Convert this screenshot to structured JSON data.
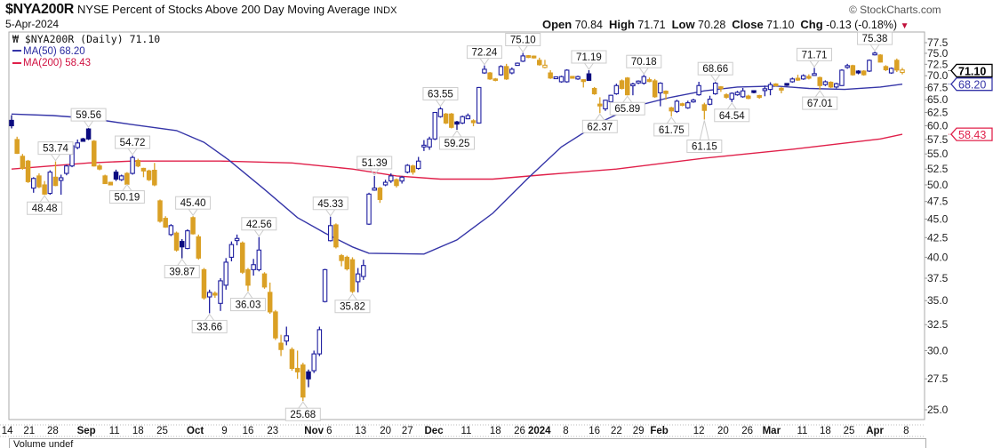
{
  "header": {
    "symbol": "$NYA200R",
    "description": "NYSE Percent of Stocks Above 200 Day Moving Average",
    "exchange": "INDX",
    "date": "5-Apr-2024",
    "logo": "© StockCharts.com",
    "open_label": "Open",
    "open": "70.84",
    "high_label": "High",
    "high": "71.71",
    "low_label": "Low",
    "low": "70.28",
    "close_label": "Close",
    "close": "71.10",
    "chg_label": "Chg",
    "chg": "-0.13 (-0.18%)",
    "chg_icon": "triangle-down-icon"
  },
  "legend": {
    "main": "$NYA200R (Daily) 71.10",
    "ma50": "MA(50) 68.20",
    "ma200": "MA(200) 58.43"
  },
  "volume_panel": {
    "label": "Volume undef"
  },
  "colors": {
    "up": "#1f1fa0",
    "down": "#daa025",
    "ma50": "#3535a8",
    "ma200": "#e0204a",
    "last": "#000000"
  },
  "chart_data": {
    "type": "candlestick",
    "title": "$NYA200R NYSE Percent of Stocks Above 200 Day Moving Average",
    "yscale": "log",
    "ylim": [
      25.0,
      77.5
    ],
    "y_ticks": [
      "25.0",
      "27.5",
      "30.0",
      "32.5",
      "35.0",
      "37.5",
      "40.0",
      "42.5",
      "45.0",
      "47.5",
      "50.0",
      "52.5",
      "55.0",
      "57.5",
      "60.0",
      "62.5",
      "65.0",
      "67.5",
      "70.0",
      "72.5",
      "75.0",
      "77.5"
    ],
    "x_ticks": [
      {
        "i": -0.8,
        "label": "14"
      },
      {
        "i": 3.2,
        "label": "21"
      },
      {
        "i": 7.5,
        "label": "28"
      },
      {
        "i": 13.6,
        "label": "Sep",
        "bold": true
      },
      {
        "i": 18.7,
        "label": "11"
      },
      {
        "i": 23,
        "label": "18"
      },
      {
        "i": 27.4,
        "label": "25"
      },
      {
        "i": 33.4,
        "label": "Oct",
        "bold": true
      },
      {
        "i": 38.7,
        "label": "9"
      },
      {
        "i": 43,
        "label": "16"
      },
      {
        "i": 47.5,
        "label": "23"
      },
      {
        "i": 55,
        "label": "Nov",
        "bold": true
      },
      {
        "i": 57.6,
        "label": "6"
      },
      {
        "i": 63.5,
        "label": "13"
      },
      {
        "i": 68,
        "label": "20"
      },
      {
        "i": 72,
        "label": "27"
      },
      {
        "i": 76.8,
        "label": "Dec",
        "bold": true
      },
      {
        "i": 82.7,
        "label": "11"
      },
      {
        "i": 88,
        "label": "18"
      },
      {
        "i": 92.4,
        "label": "26"
      },
      {
        "i": 96,
        "label": "2024",
        "bold": true
      },
      {
        "i": 100.8,
        "label": "8"
      },
      {
        "i": 106,
        "label": "16"
      },
      {
        "i": 110,
        "label": "22"
      },
      {
        "i": 114,
        "label": "29"
      },
      {
        "i": 117.8,
        "label": "Feb",
        "bold": true
      },
      {
        "i": 125,
        "label": "12"
      },
      {
        "i": 129.4,
        "label": "20"
      },
      {
        "i": 133.8,
        "label": "26"
      },
      {
        "i": 138.2,
        "label": "Mar",
        "bold": true
      },
      {
        "i": 143.8,
        "label": "11"
      },
      {
        "i": 148,
        "label": "18"
      },
      {
        "i": 152.3,
        "label": "25"
      },
      {
        "i": 157,
        "label": "Apr",
        "bold": true
      },
      {
        "i": 162.7,
        "label": "8"
      }
    ],
    "ohlc": [
      [
        61,
        62,
        59.5,
        60
      ],
      [
        57.5,
        58,
        55,
        55.1
      ],
      [
        54.6,
        55,
        52.4,
        52.6
      ],
      [
        53.8,
        54,
        50.3,
        50.5
      ],
      [
        49.5,
        51.2,
        48.8,
        51
      ],
      [
        51.4,
        51.8,
        49.5,
        49.7
      ],
      [
        50,
        50.6,
        48.48,
        48.6
      ],
      [
        48.7,
        52.3,
        48.5,
        52
      ],
      [
        51.2,
        53.74,
        49.8,
        49.9
      ],
      [
        50.8,
        51.6,
        48.5,
        51
      ],
      [
        51.8,
        53.2,
        51.5,
        53
      ],
      [
        53,
        56.6,
        52.8,
        56.4
      ],
      [
        56.1,
        57.5,
        55.8,
        56.9
      ],
      [
        57.5,
        57.8,
        57.1,
        57.3
      ],
      [
        59.4,
        59.56,
        57.4,
        57.6
      ],
      [
        57.2,
        57.4,
        52.9,
        53
      ],
      [
        53,
        53.3,
        52.3,
        52.5
      ],
      [
        51.4,
        51.6,
        50.3,
        50.2
      ],
      [
        50.3,
        50.4,
        50.3,
        50.1
      ],
      [
        52,
        52.4,
        50.6,
        50.9
      ],
      [
        50.8,
        51.6,
        50.6,
        51.4
      ],
      [
        51.8,
        52,
        50.19,
        50.1
      ],
      [
        51.8,
        54.72,
        51.6,
        54.4
      ],
      [
        53.9,
        54.2,
        52.8,
        53
      ],
      [
        52.5,
        52.7,
        51.2,
        52.3
      ],
      [
        52.2,
        52.4,
        50.6,
        50.8
      ],
      [
        52.3,
        53.5,
        49.8,
        50
      ],
      [
        47.6,
        47.8,
        44.5,
        44.7
      ],
      [
        45.1,
        45.4,
        43.8,
        43.9
      ],
      [
        42.9,
        44.3,
        42.7,
        44.1
      ],
      [
        43.1,
        43.3,
        40.7,
        40.9
      ],
      [
        42,
        42.3,
        39.87,
        41.3
      ],
      [
        41.1,
        43.6,
        41,
        43.4
      ],
      [
        45.2,
        45.4,
        42.9,
        43
      ],
      [
        42.6,
        42.9,
        39.7,
        39.9
      ],
      [
        38.5,
        38.7,
        35.1,
        35.3
      ],
      [
        35.4,
        36.2,
        33.66,
        35.9
      ],
      [
        35.8,
        36,
        35.3,
        35.6
      ],
      [
        34.7,
        37.5,
        33.9,
        37.2
      ],
      [
        36.7,
        39.9,
        36.2,
        39.4
      ],
      [
        40,
        42,
        39.5,
        41.6
      ],
      [
        42.2,
        42.9,
        41.5,
        42.3
      ],
      [
        41.8,
        42,
        38,
        38.2
      ],
      [
        38.5,
        38.7,
        36.03,
        36.7
      ],
      [
        38.5,
        39.8,
        37.8,
        39.1
      ],
      [
        38.5,
        42.56,
        38.3,
        40.9
      ],
      [
        38,
        38.2,
        36.3,
        36.5
      ],
      [
        35.9,
        37,
        33.6,
        33.8
      ],
      [
        33.8,
        34,
        31,
        31.2
      ],
      [
        30.7,
        31.5,
        29.5,
        30.1
      ],
      [
        30.9,
        32.3,
        30.5,
        31.4
      ],
      [
        30.1,
        30.3,
        28.2,
        28.4
      ],
      [
        28.4,
        30,
        27.5,
        28.1
      ],
      [
        28.7,
        28.9,
        25.68,
        26
      ],
      [
        28.1,
        28.3,
        26.8,
        27.5
      ],
      [
        28.2,
        30,
        28,
        29.7
      ],
      [
        29.7,
        32.3,
        29.5,
        32
      ],
      [
        34.9,
        38.6,
        34.8,
        38.5
      ],
      [
        42.1,
        45.33,
        42,
        44.1
      ],
      [
        44.2,
        44.4,
        41.1,
        41.3
      ],
      [
        40.2,
        40.4,
        38.9,
        39.6
      ],
      [
        40,
        40.2,
        38.4,
        38.6
      ],
      [
        39.7,
        40,
        35.82,
        36
      ],
      [
        37.1,
        38.7,
        35.9,
        38
      ],
      [
        37.7,
        39.7,
        37.3,
        39
      ],
      [
        44.3,
        48.8,
        44.2,
        48.6
      ],
      [
        49.3,
        51.39,
        49.1,
        49.4
      ],
      [
        49.5,
        49.7,
        47.3,
        47.8
      ],
      [
        50,
        50.8,
        49.8,
        50.4
      ],
      [
        50.6,
        51.8,
        50.3,
        51.4
      ],
      [
        50.8,
        51,
        49.6,
        49.9
      ],
      [
        50.6,
        51.4,
        50.2,
        51.2
      ],
      [
        52,
        53.3,
        51.8,
        53.1
      ],
      [
        53,
        53.2,
        51.6,
        52
      ],
      [
        52.6,
        54.5,
        52.4,
        53.8
      ],
      [
        56.2,
        57.4,
        55.5,
        56.5
      ],
      [
        56.2,
        58,
        55.7,
        57.6
      ],
      [
        57.6,
        62.6,
        57.4,
        62.5
      ],
      [
        61.7,
        63.55,
        61.5,
        63.2
      ],
      [
        62.2,
        62.4,
        60.3,
        60.5
      ],
      [
        62.2,
        62.4,
        59.5,
        59.7
      ],
      [
        60.7,
        60.9,
        59.25,
        60.3
      ],
      [
        60.5,
        61.9,
        60.3,
        61.7
      ],
      [
        61.3,
        62.3,
        61.2,
        61.9
      ],
      [
        60.8,
        61.2,
        59.9,
        60.7
      ],
      [
        60.5,
        67.6,
        60.4,
        67.5
      ],
      [
        70.6,
        72.24,
        70.4,
        71.4
      ],
      [
        70.6,
        70.8,
        69.1,
        69.3
      ],
      [
        69.3,
        69.5,
        68.8,
        69
      ],
      [
        70.2,
        72.3,
        70,
        72
      ],
      [
        72,
        72.6,
        69.1,
        69.3
      ],
      [
        70.6,
        71.8,
        70.3,
        71.4
      ],
      [
        72.4,
        72.9,
        72.2,
        72.6
      ],
      [
        73.2,
        75.1,
        73,
        74.4
      ],
      [
        74.3,
        74.6,
        73.9,
        74.2
      ],
      [
        74.2,
        74.5,
        73.8,
        74.1
      ],
      [
        73.4,
        74,
        72.2,
        72.4
      ],
      [
        71.8,
        73.5,
        71.6,
        72.3
      ],
      [
        70.6,
        71.2,
        69.3,
        69.5
      ],
      [
        69.5,
        69.8,
        69.3,
        69.6
      ],
      [
        68.7,
        70,
        68.5,
        69.8
      ],
      [
        68.7,
        71.4,
        68.5,
        71.2
      ],
      [
        69.7,
        69.9,
        69.4,
        69.6
      ],
      [
        69.3,
        70,
        69.1,
        69.8
      ],
      [
        69,
        69.2,
        67.5,
        68.9
      ],
      [
        70.4,
        71.19,
        68.9,
        69
      ],
      [
        67.3,
        67.6,
        66,
        66.2
      ],
      [
        64,
        65.5,
        62.37,
        63.9
      ],
      [
        63.2,
        65,
        62.8,
        64.9
      ],
      [
        64.6,
        66,
        64.3,
        65.9
      ],
      [
        66.2,
        68.3,
        66,
        67.9
      ],
      [
        68.9,
        69.2,
        67.1,
        67.3
      ],
      [
        69.5,
        69.7,
        65.89,
        66
      ],
      [
        68,
        68.5,
        65.9,
        68.1
      ],
      [
        68.6,
        69,
        68.2,
        68.7
      ],
      [
        68.4,
        70.18,
        68.1,
        69.8
      ],
      [
        69,
        69.6,
        68.6,
        68.9
      ],
      [
        68.9,
        69.3,
        65.4,
        65.6
      ],
      [
        66.4,
        68.6,
        63.7,
        68.4
      ],
      [
        66.6,
        66.9,
        65,
        66.4
      ],
      [
        63.4,
        63.6,
        61.75,
        62.8
      ],
      [
        62.7,
        65,
        62.4,
        64.7
      ],
      [
        64.2,
        64.4,
        63.7,
        63.9
      ],
      [
        63.4,
        64.8,
        63.2,
        64.4
      ],
      [
        64.7,
        65.2,
        64.4,
        64.8
      ],
      [
        66,
        68.7,
        65.8,
        67.9
      ],
      [
        64,
        64.4,
        61.15,
        62.9
      ],
      [
        64.1,
        65.8,
        63.9,
        65.1
      ],
      [
        66.2,
        68.66,
        66,
        68.4
      ],
      [
        67.5,
        67.8,
        66.6,
        67.4
      ],
      [
        66,
        66.3,
        65.2,
        65.5
      ],
      [
        65.1,
        66.5,
        64.54,
        66.3
      ],
      [
        66,
        66.8,
        65.8,
        66.5
      ],
      [
        65.6,
        67.4,
        65.4,
        66.8
      ],
      [
        65.6,
        66,
        65.1,
        65.4
      ],
      [
        66.7,
        66.9,
        66.3,
        66.6
      ],
      [
        65.7,
        66,
        65.2,
        65.6
      ],
      [
        67,
        67.9,
        65.7,
        67.1
      ],
      [
        67.1,
        68.6,
        65.9,
        68.1
      ],
      [
        68.1,
        68.4,
        67.7,
        68
      ],
      [
        67.2,
        67.6,
        66.3,
        67.1
      ],
      [
        68.2,
        68.4,
        67.8,
        68.1
      ],
      [
        68.7,
        69.6,
        68.5,
        69.3
      ],
      [
        69.3,
        70.2,
        68.9,
        69.2
      ],
      [
        69.3,
        70.3,
        69.1,
        70
      ],
      [
        69.7,
        70.3,
        69.2,
        69.6
      ],
      [
        70.2,
        71.71,
        70,
        70.3
      ],
      [
        69.6,
        69.8,
        67.01,
        67.9
      ],
      [
        68.1,
        69,
        67.8,
        68.7
      ],
      [
        68.6,
        68.8,
        67.4,
        67.6
      ],
      [
        67.6,
        68.5,
        67.3,
        68.3
      ],
      [
        67.9,
        71.4,
        67.8,
        71.2
      ],
      [
        71.8,
        72.6,
        71.5,
        72.2
      ],
      [
        72.2,
        72.4,
        70,
        70.2
      ],
      [
        71,
        71.2,
        70.3,
        70.6
      ],
      [
        71,
        71.2,
        70,
        70.2
      ],
      [
        71,
        73.6,
        70.8,
        73.4
      ],
      [
        74.8,
        75.38,
        74.5,
        74.9
      ],
      [
        74.6,
        74.8,
        72.9,
        73
      ],
      [
        72,
        72.3,
        71,
        71.3
      ],
      [
        70.6,
        71.8,
        70.4,
        71.6
      ],
      [
        73.4,
        73.8,
        70.8,
        71.23
      ],
      [
        70.84,
        71.71,
        70.28,
        71.1
      ]
    ],
    "ma50": {
      "name": "MA(50)",
      "last": "68.20",
      "points": [
        [
          0,
          62.2
        ],
        [
          7.5,
          61.9
        ],
        [
          14,
          61.4
        ],
        [
          22,
          60.2
        ],
        [
          30,
          59.1
        ],
        [
          35,
          57
        ],
        [
          39.5,
          54
        ],
        [
          46,
          49.3
        ],
        [
          52,
          45.2
        ],
        [
          57,
          43.1
        ],
        [
          62,
          41.3
        ],
        [
          65,
          40.5
        ],
        [
          75,
          40.4
        ],
        [
          81,
          42.2
        ],
        [
          87.5,
          45.8
        ],
        [
          94,
          51.1
        ],
        [
          100,
          56.2
        ],
        [
          107,
          60.6
        ],
        [
          113,
          63.6
        ],
        [
          119.5,
          65.4
        ],
        [
          126,
          66.8
        ],
        [
          132,
          67.6
        ],
        [
          139,
          67.8
        ],
        [
          145,
          67.3
        ],
        [
          151.5,
          67.1
        ],
        [
          158,
          67.6
        ],
        [
          162,
          68.2
        ]
      ]
    },
    "ma200": {
      "name": "MA(200)",
      "last": "58.43",
      "points": [
        [
          0,
          52.5
        ],
        [
          14,
          53.5
        ],
        [
          22,
          53.8
        ],
        [
          38,
          53.8
        ],
        [
          51,
          53.5
        ],
        [
          62,
          52.5
        ],
        [
          70,
          51.4
        ],
        [
          78,
          50.9
        ],
        [
          87.5,
          50.9
        ],
        [
          97,
          51.6
        ],
        [
          110,
          52.5
        ],
        [
          126,
          54.3
        ],
        [
          142,
          55.8
        ],
        [
          158,
          57.6
        ],
        [
          162,
          58.43
        ]
      ]
    },
    "last_close": "71.10",
    "annotations": [
      {
        "i": 6,
        "text": "48.48",
        "pos": "below"
      },
      {
        "i": 8,
        "text": "53.74",
        "pos": "above"
      },
      {
        "i": 14,
        "text": "59.56",
        "pos": "above"
      },
      {
        "i": 21,
        "text": "50.19",
        "pos": "below"
      },
      {
        "i": 22,
        "text": "54.72",
        "pos": "above"
      },
      {
        "i": 33,
        "text": "45.40",
        "pos": "above"
      },
      {
        "i": 31,
        "text": "39.87",
        "pos": "below"
      },
      {
        "i": 36,
        "text": "33.66",
        "pos": "below"
      },
      {
        "i": 45,
        "text": "42.56",
        "pos": "above"
      },
      {
        "i": 43,
        "text": "36.03",
        "pos": "below"
      },
      {
        "i": 53,
        "text": "25.68",
        "pos": "below"
      },
      {
        "i": 58,
        "text": "45.33",
        "pos": "above"
      },
      {
        "i": 62,
        "text": "35.82",
        "pos": "below"
      },
      {
        "i": 66,
        "text": "51.39",
        "pos": "above"
      },
      {
        "i": 78,
        "text": "63.55",
        "pos": "above"
      },
      {
        "i": 81,
        "text": "59.25",
        "pos": "below"
      },
      {
        "i": 86,
        "text": "72.24",
        "pos": "above"
      },
      {
        "i": 93,
        "text": "75.10",
        "pos": "above"
      },
      {
        "i": 105,
        "text": "71.19",
        "pos": "above"
      },
      {
        "i": 107,
        "text": "62.37",
        "pos": "below"
      },
      {
        "i": 115,
        "text": "70.18",
        "pos": "above"
      },
      {
        "i": 112,
        "text": "65.89",
        "pos": "below"
      },
      {
        "i": 120,
        "text": "61.75",
        "pos": "below"
      },
      {
        "i": 126,
        "text": "61.15",
        "pos": "below"
      },
      {
        "i": 128,
        "text": "68.66",
        "pos": "above"
      },
      {
        "i": 131,
        "text": "64.54",
        "pos": "below"
      },
      {
        "i": 146,
        "text": "71.71",
        "pos": "above"
      },
      {
        "i": 147,
        "text": "67.01",
        "pos": "below"
      },
      {
        "i": 157,
        "text": "75.38",
        "pos": "above"
      }
    ]
  }
}
